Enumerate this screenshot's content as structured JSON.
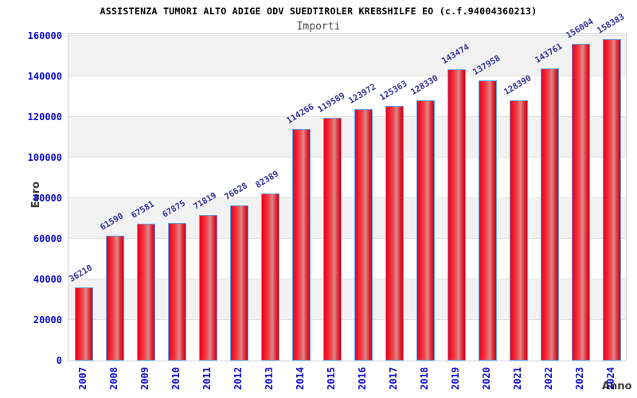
{
  "header": {
    "title": "ASSISTENZA TUMORI ALTO ADIGE ODV SUEDTIROLER KREBSHILFE EO (c.f.94004360213)",
    "subtitle": "Importi"
  },
  "chart_data": {
    "type": "bar",
    "title": "ASSISTENZA TUMORI ALTO ADIGE ODV SUEDTIROLER KREBSHILFE EO (c.f.94004360213)",
    "subtitle": "Importi",
    "xlabel": "Anno",
    "ylabel": "Euro",
    "categories": [
      "2007",
      "2008",
      "2009",
      "2010",
      "2011",
      "2012",
      "2013",
      "2014",
      "2015",
      "2016",
      "2017",
      "2018",
      "2019",
      "2020",
      "2021",
      "2022",
      "2023",
      "2024"
    ],
    "values": [
      36210,
      61590,
      67581,
      67875,
      71819,
      76628,
      82389,
      114266,
      119589,
      123972,
      125363,
      128330,
      143474,
      137958,
      128390,
      143761,
      156004,
      158383
    ],
    "value_labels": [
      "36210",
      "61590",
      "67581",
      "67875",
      "71819",
      "76628",
      "82389",
      "114266",
      "119589",
      "123972",
      "125363",
      "128330",
      "143474",
      "137958",
      "128390",
      "143761",
      "156004",
      "158383"
    ],
    "ylim": [
      0,
      160000
    ],
    "ytick_step": 20000,
    "yticks": [
      0,
      20000,
      40000,
      60000,
      80000,
      100000,
      120000,
      140000,
      160000
    ],
    "grid": "horizontal alternating bands, gridline each 20000",
    "legend": "none",
    "colors": {
      "bar_fill": "#f3212f",
      "bar_highlight": "#d98a8c",
      "bar_border": "#63a4ea",
      "band_gray": "#f2f2f2",
      "band_white": "#ffffff",
      "gridline": "#e2e2e2",
      "axis_tick_label": "#0d0dd0",
      "value_label": "#32329b",
      "axis_title": "#3c3c3c",
      "title": "#000000",
      "subtitle": "#4a4a4a",
      "plot_border": "#cfcfcf"
    }
  }
}
